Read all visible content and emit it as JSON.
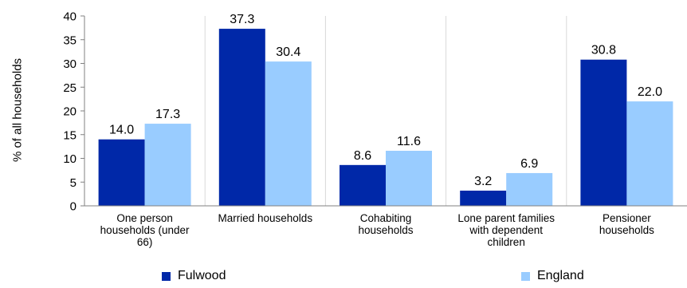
{
  "chart_data": {
    "type": "bar",
    "title": "",
    "xlabel": "",
    "ylabel": "% of all households",
    "ylim": [
      0,
      40
    ],
    "yticks": [
      0,
      5,
      10,
      15,
      20,
      25,
      30,
      35,
      40
    ],
    "ytick_labels": [
      "0",
      "5",
      "10",
      "15",
      "20",
      "25",
      "30",
      "35",
      "40"
    ],
    "grid": "vertical separators between categories",
    "legend_position": "bottom",
    "categories": [
      [
        "One person",
        "households (under",
        "66)"
      ],
      [
        "Married households"
      ],
      [
        "Cohabiting",
        "households"
      ],
      [
        "Lone parent families",
        "with dependent",
        "children"
      ],
      [
        "Pensioner",
        "households"
      ]
    ],
    "series": [
      {
        "name": "Fulwood",
        "color": "#0028a8",
        "values": [
          14.0,
          37.3,
          8.6,
          3.2,
          30.8
        ],
        "labels": [
          "14.0",
          "37.3",
          "8.6",
          "3.2",
          "30.8"
        ]
      },
      {
        "name": "England",
        "color": "#99ccff",
        "values": [
          17.3,
          30.4,
          11.6,
          6.9,
          22.0
        ],
        "labels": [
          "17.3",
          "30.4",
          "11.6",
          "6.9",
          "22.0"
        ]
      }
    ]
  }
}
